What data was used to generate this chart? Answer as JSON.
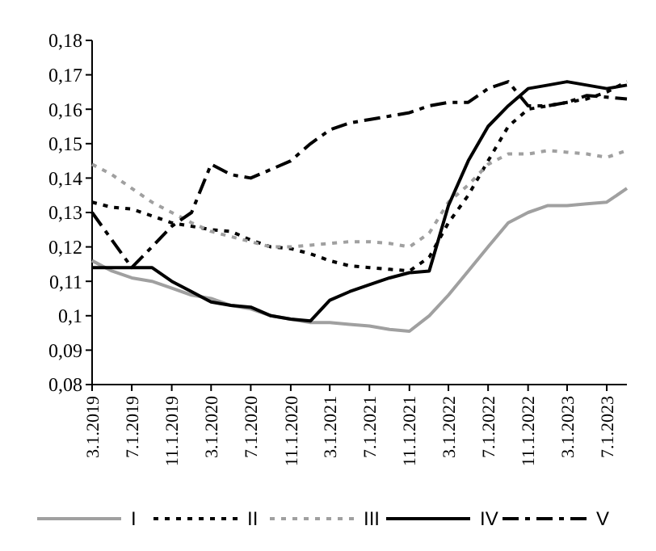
{
  "chart_data": {
    "type": "line",
    "x": [
      "2019-03",
      "2019-05",
      "2019-07",
      "2019-09",
      "2019-11",
      "2020-01",
      "2020-03",
      "2020-05",
      "2020-07",
      "2020-09",
      "2020-11",
      "2021-01",
      "2021-03",
      "2021-05",
      "2021-07",
      "2021-09",
      "2021-11",
      "2022-01",
      "2022-03",
      "2022-05",
      "2022-07",
      "2022-09",
      "2022-11",
      "2023-01",
      "2023-03",
      "2023-05",
      "2023-07",
      "2023-09"
    ],
    "xlim": [
      "2019-03",
      "2023-09"
    ],
    "xticks": [
      {
        "value": "2019-03",
        "label": "3.1.2019"
      },
      {
        "value": "2019-07",
        "label": "7.1.2019"
      },
      {
        "value": "2019-11",
        "label": "11.1.2019"
      },
      {
        "value": "2020-03",
        "label": "3.1.2020"
      },
      {
        "value": "2020-07",
        "label": "7.1.2020"
      },
      {
        "value": "2020-11",
        "label": "11.1.2020"
      },
      {
        "value": "2021-03",
        "label": "3.1.2021"
      },
      {
        "value": "2021-07",
        "label": "7.1.2021"
      },
      {
        "value": "2021-11",
        "label": "11.1.2021"
      },
      {
        "value": "2022-03",
        "label": "3.1.2022"
      },
      {
        "value": "2022-07",
        "label": "7.1.2022"
      },
      {
        "value": "2022-11",
        "label": "11.1.2022"
      },
      {
        "value": "2023-03",
        "label": "3.1.2023"
      },
      {
        "value": "2023-07",
        "label": "7.1.2023"
      }
    ],
    "ylim": [
      0.08,
      0.18
    ],
    "yticks": [
      {
        "value": 0.08,
        "label": "0,08"
      },
      {
        "value": 0.09,
        "label": "0,09"
      },
      {
        "value": 0.1,
        "label": "0,1"
      },
      {
        "value": 0.11,
        "label": "0,11"
      },
      {
        "value": 0.12,
        "label": "0,12"
      },
      {
        "value": 0.13,
        "label": "0,13"
      },
      {
        "value": 0.14,
        "label": "0,14"
      },
      {
        "value": 0.15,
        "label": "0,15"
      },
      {
        "value": 0.16,
        "label": "0,16"
      },
      {
        "value": 0.17,
        "label": "0,17"
      },
      {
        "value": 0.18,
        "label": "0,18"
      }
    ],
    "grid": false,
    "legend": "bottom",
    "series": [
      {
        "name": "I",
        "color": "#a0a0a0",
        "line_style": "solid",
        "values": [
          0.116,
          0.113,
          0.111,
          0.11,
          0.108,
          0.106,
          0.105,
          0.103,
          0.102,
          0.1,
          0.099,
          0.098,
          0.098,
          0.0975,
          0.097,
          0.096,
          0.0955,
          0.1,
          0.106,
          0.113,
          0.12,
          0.127,
          0.13,
          0.132,
          0.132,
          0.1325,
          0.133,
          0.137
        ]
      },
      {
        "name": "II",
        "color": "#000000",
        "line_style": "dotted",
        "values": [
          0.133,
          0.1315,
          0.131,
          0.129,
          0.127,
          0.126,
          0.125,
          0.1245,
          0.122,
          0.12,
          0.1195,
          0.118,
          0.116,
          0.1145,
          0.114,
          0.1135,
          0.113,
          0.117,
          0.127,
          0.135,
          0.145,
          0.155,
          0.16,
          0.161,
          0.162,
          0.163,
          0.165,
          0.168
        ]
      },
      {
        "name": "III",
        "color": "#a0a0a0",
        "line_style": "dotted",
        "values": [
          0.144,
          0.141,
          0.137,
          0.133,
          0.13,
          0.127,
          0.1245,
          0.123,
          0.1215,
          0.12,
          0.12,
          0.1205,
          0.121,
          0.1215,
          0.1215,
          0.121,
          0.12,
          0.124,
          0.133,
          0.138,
          0.144,
          0.147,
          0.147,
          0.148,
          0.1475,
          0.147,
          0.146,
          0.148
        ]
      },
      {
        "name": "IV",
        "color": "#000000",
        "line_style": "solid",
        "values": [
          0.114,
          0.114,
          0.114,
          0.114,
          0.11,
          0.107,
          0.104,
          0.103,
          0.1025,
          0.1,
          0.099,
          0.0985,
          0.1045,
          0.107,
          0.109,
          0.111,
          0.1125,
          0.113,
          0.132,
          0.145,
          0.155,
          0.161,
          0.166,
          0.167,
          0.168,
          0.167,
          0.166,
          0.167
        ]
      },
      {
        "name": "V",
        "color": "#000000",
        "line_style": "dashdot",
        "values": [
          0.13,
          0.122,
          0.114,
          0.12,
          0.126,
          0.13,
          0.144,
          0.141,
          0.14,
          0.1425,
          0.145,
          0.15,
          0.154,
          0.156,
          0.157,
          0.158,
          0.159,
          0.161,
          0.162,
          0.162,
          0.166,
          0.168,
          0.161,
          0.161,
          0.162,
          0.164,
          0.1635,
          0.163
        ]
      }
    ]
  }
}
